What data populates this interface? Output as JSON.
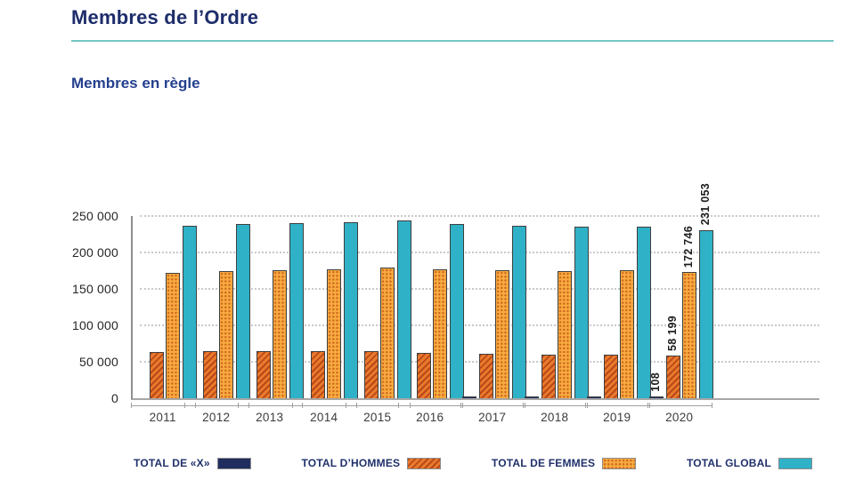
{
  "page": {
    "title": "Membres de l’Ordre",
    "subtitle": "Membres en règle"
  },
  "colors": {
    "title_navy": "#1d2d6b",
    "subtitle_blue": "#24408e",
    "rule_teal": "#74c6c2",
    "series_x_navy": "#1f2e5e",
    "series_hommes_orange": "#ea7a2c",
    "series_hommes_stripe": "#b94819",
    "series_femmes_amber": "#f7ab3f",
    "series_femmes_dot": "#cf641f",
    "series_global_teal": "#2fb1c7",
    "axis_gray": "#9f9f9f",
    "grid_gray": "#c9c9c9"
  },
  "chart_data": {
    "type": "bar",
    "title": "Membres en règle",
    "xlabel": "",
    "ylabel": "",
    "grid": "dotted-horizontal",
    "legend_position": "bottom",
    "categories": [
      "2011",
      "2012",
      "2013",
      "2014",
      "2015",
      "2016",
      "2017",
      "2018",
      "2019",
      "2020"
    ],
    "series": [
      {
        "name": "TOTAL DE «X»",
        "pattern": "solid-navy",
        "values": [
          0,
          0,
          0,
          0,
          0,
          0,
          100,
          100,
          100,
          108
        ]
      },
      {
        "name": "TOTAL D’HOMMES",
        "pattern": "stripes",
        "values": [
          64000,
          64500,
          64500,
          65000,
          64500,
          62500,
          60500,
          60000,
          60000,
          58199
        ]
      },
      {
        "name": "TOTAL DE FEMMES",
        "pattern": "dots",
        "values": [
          172000,
          174500,
          175500,
          176500,
          179000,
          176500,
          176000,
          175000,
          175500,
          172746
        ]
      },
      {
        "name": "TOTAL GLOBAL",
        "pattern": "solid-teal",
        "values": [
          236000,
          239000,
          240000,
          241500,
          243500,
          239000,
          236600,
          235000,
          235500,
          231053
        ]
      }
    ],
    "data_labels": {
      "category": "2020",
      "values": [
        "108",
        "58 199",
        "172 746",
        "231 053"
      ]
    },
    "y_axis": {
      "max": 250000,
      "ticks": [
        0,
        50000,
        100000,
        150000,
        200000,
        250000
      ],
      "tick_labels": [
        "0",
        "50 000",
        "100 000",
        "150 000",
        "200 000",
        "250 000"
      ]
    },
    "values_note": "Only the 2020 bars are labeled in the chart; 2011–2019 values are estimated from bar heights against the gridlines."
  },
  "legend": {
    "items": [
      {
        "label": "TOTAL DE «X»"
      },
      {
        "label": "TOTAL D’HOMMES"
      },
      {
        "label": "TOTAL DE FEMMES"
      },
      {
        "label": "TOTAL GLOBAL"
      }
    ]
  }
}
